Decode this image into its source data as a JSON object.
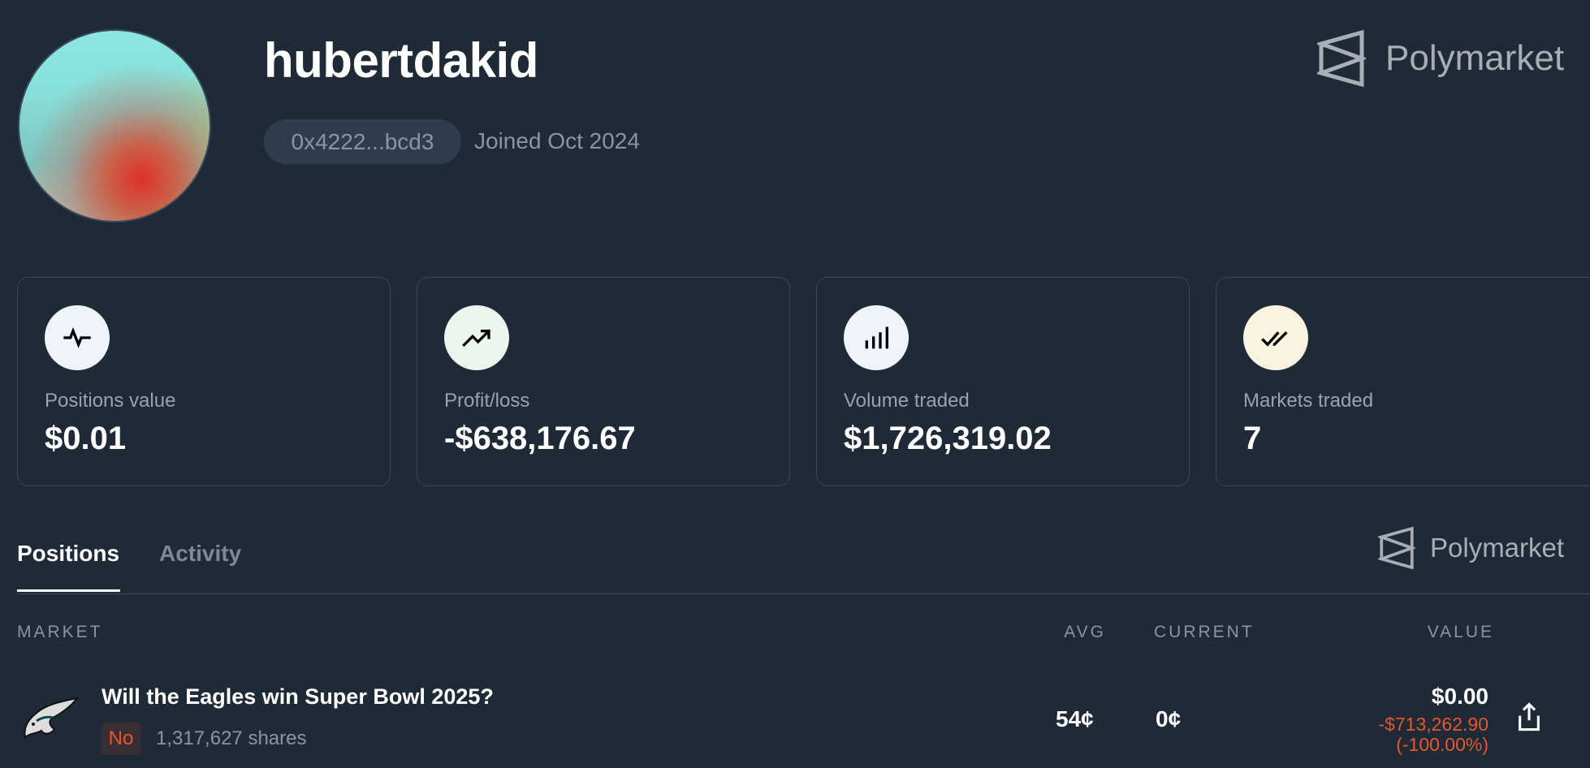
{
  "profile": {
    "username": "hubertdakid",
    "address": "0x4222...bcd3",
    "joined": "Joined Oct 2024"
  },
  "brand": {
    "name": "Polymarket"
  },
  "stats": [
    {
      "label": "Positions value",
      "value": "$0.01",
      "icon": "activity-pulse-icon",
      "icon_bg": "#eef3fc"
    },
    {
      "label": "Profit/loss",
      "value": "-$638,176.67",
      "icon": "trending-up-icon",
      "icon_bg": "#ecf5ee"
    },
    {
      "label": "Volume traded",
      "value": "$1,726,319.02",
      "icon": "bar-chart-icon",
      "icon_bg": "#eef3fc"
    },
    {
      "label": "Markets traded",
      "value": "7",
      "icon": "double-check-icon",
      "icon_bg": "#fbf3e2"
    }
  ],
  "tabs": [
    {
      "label": "Positions",
      "active": true
    },
    {
      "label": "Activity",
      "active": false
    }
  ],
  "table": {
    "headers": {
      "market": "MARKET",
      "avg": "AVG",
      "current": "CURRENT",
      "value": "VALUE"
    },
    "rows": [
      {
        "title": "Will the Eagles win Super Bowl 2025?",
        "outcome": "No",
        "shares": "1,317,627 shares",
        "avg": "54¢",
        "current": "0¢",
        "value": "$0.00",
        "pnl": "-$713,262.90",
        "pnl_pct": "(-100.00%)"
      }
    ]
  },
  "colors": {
    "background": "#1f2a37",
    "negative": "#e4572e"
  }
}
